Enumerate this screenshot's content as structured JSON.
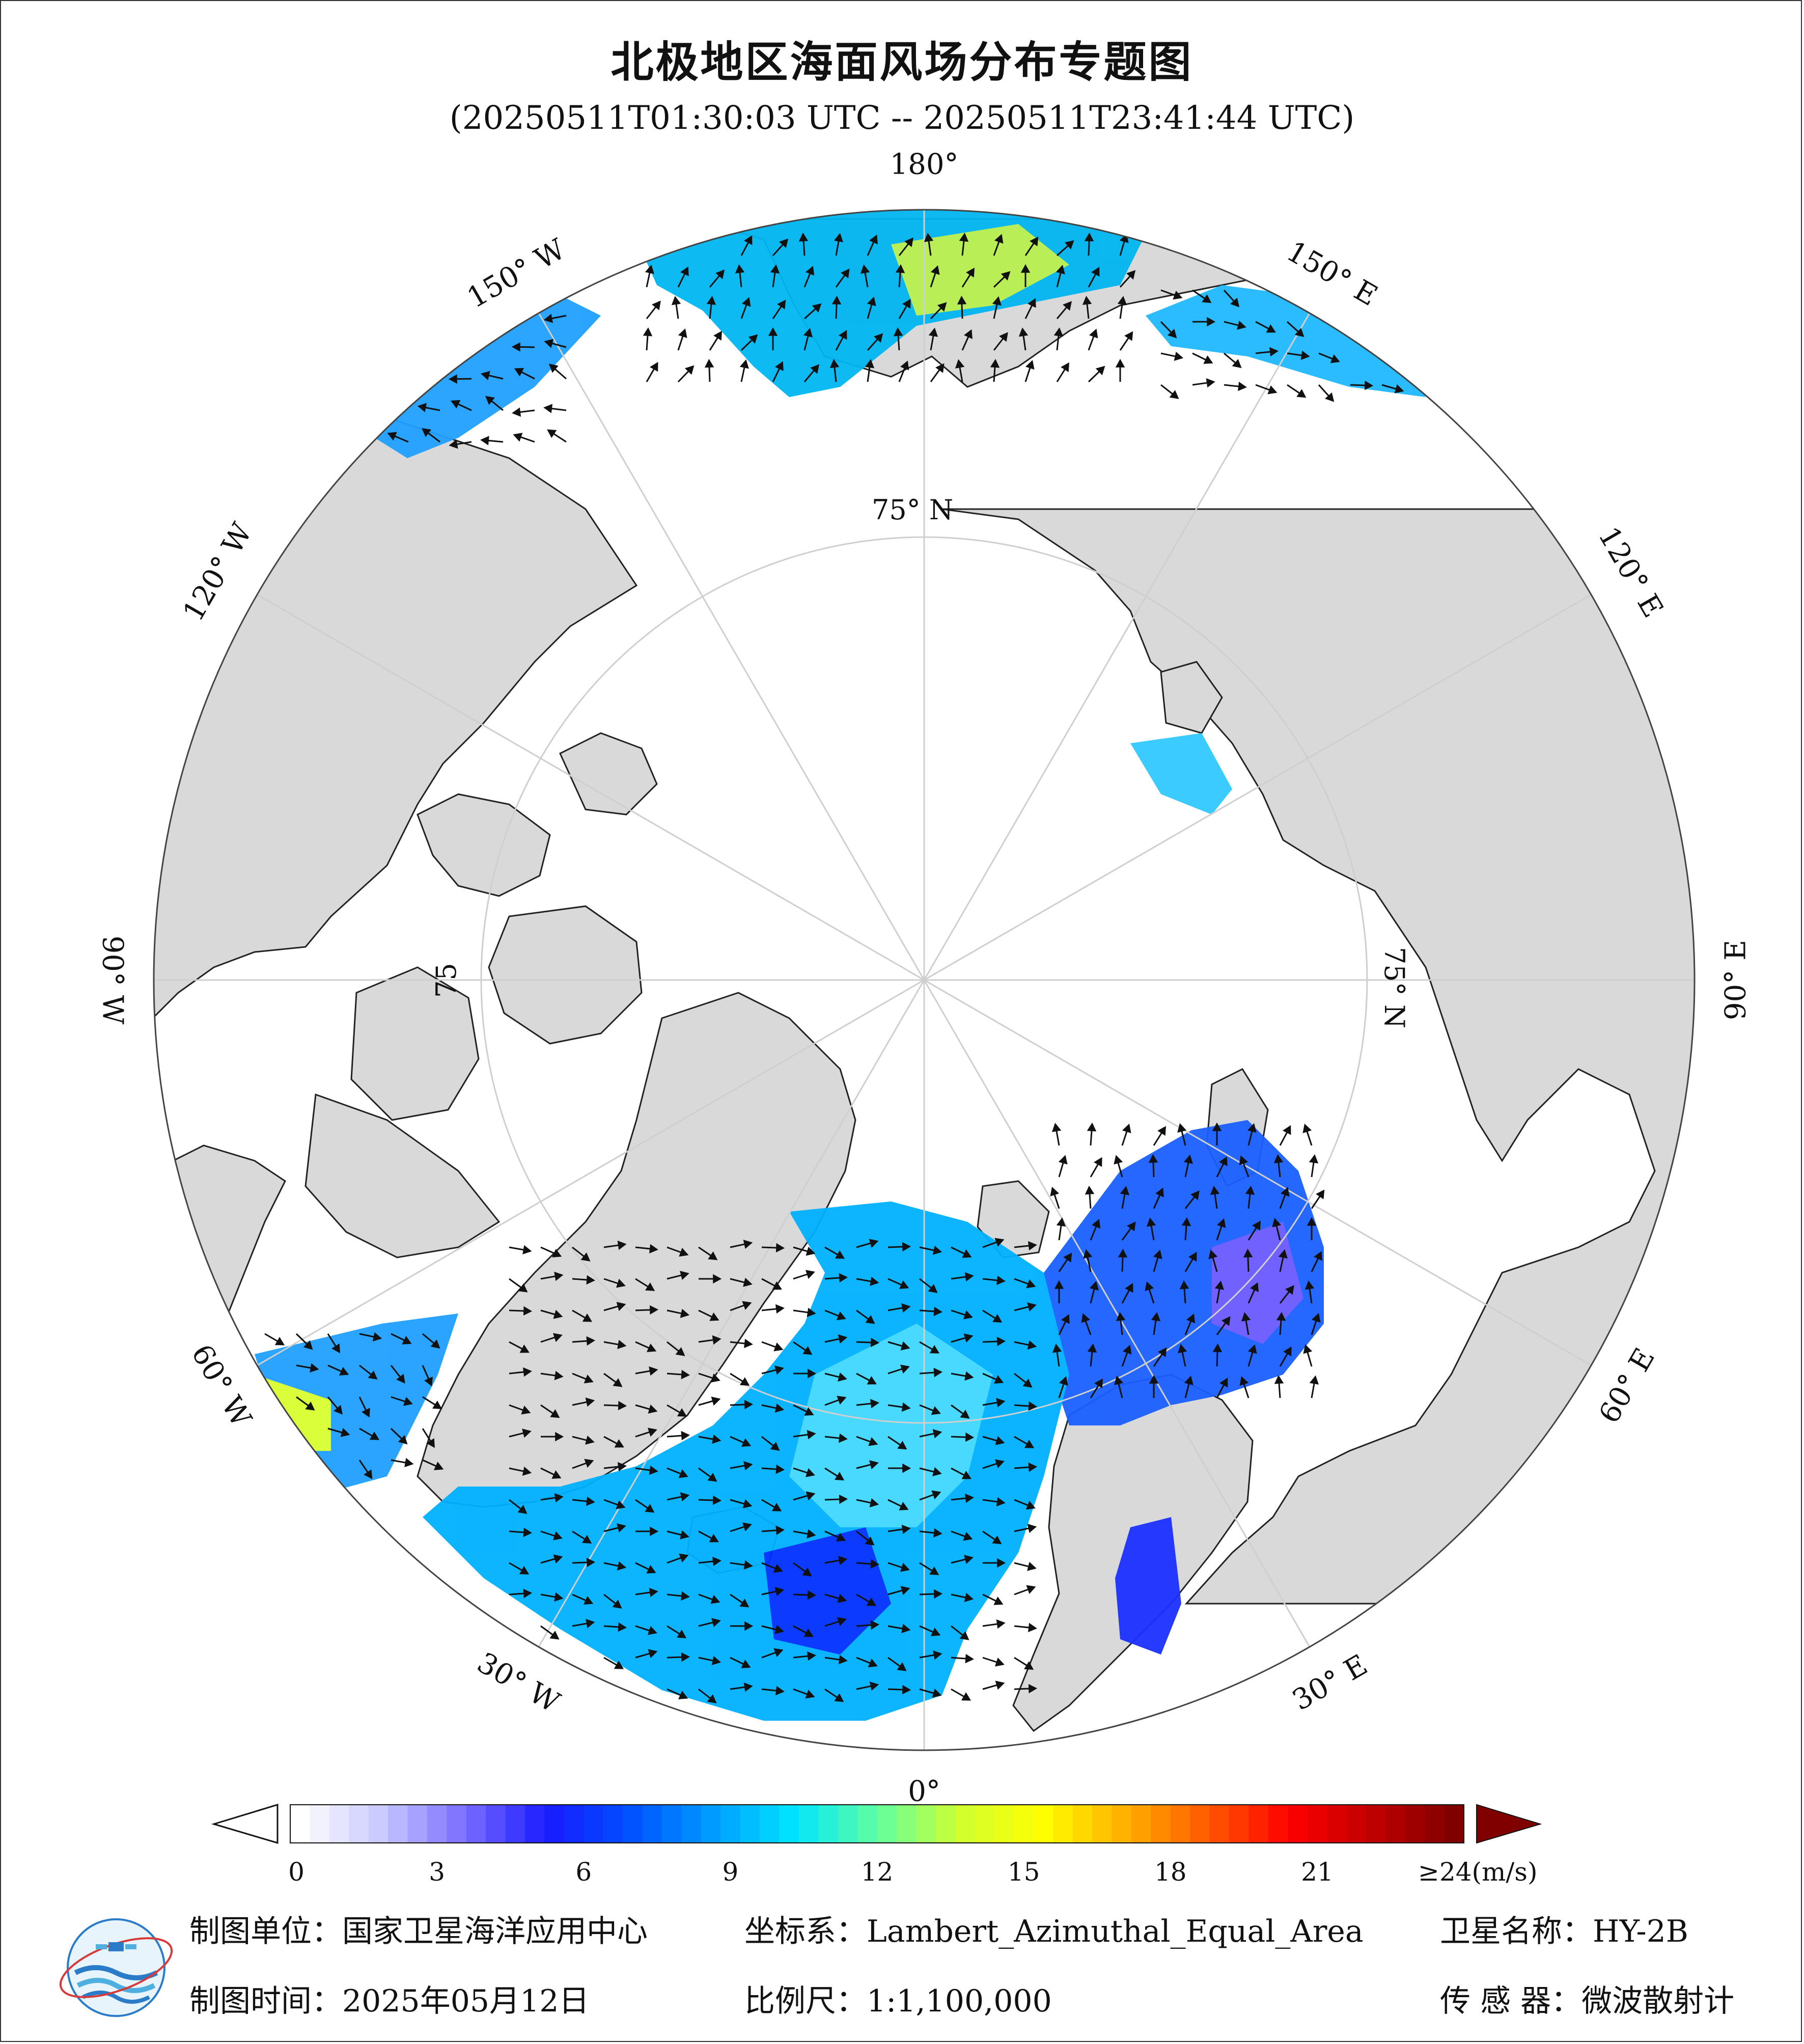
{
  "header": {
    "title": "北极地区海面风场分布专题图",
    "subtitle": "(20250511T01:30:03 UTC -- 20250511T23:41:44 UTC)"
  },
  "map": {
    "projection_center": "North Pole",
    "outer_latitude_extent": 45,
    "longitude_labels": [
      {
        "lon": 180,
        "text": "180°"
      },
      {
        "lon": -150,
        "text": "150° W"
      },
      {
        "lon": -120,
        "text": "120° W"
      },
      {
        "lon": -90,
        "text": "90° W"
      },
      {
        "lon": -60,
        "text": "60° W"
      },
      {
        "lon": -30,
        "text": "30° W"
      },
      {
        "lon": 0,
        "text": "0°"
      },
      {
        "lon": 30,
        "text": "30° E"
      },
      {
        "lon": 60,
        "text": "60° E"
      },
      {
        "lon": 90,
        "text": "90° E"
      },
      {
        "lon": 120,
        "text": "120° E"
      },
      {
        "lon": 150,
        "text": "150° E"
      }
    ],
    "latitude_labels": [
      {
        "lat": 75,
        "text": "75° N"
      },
      {
        "lat": 75,
        "text": "75"
      },
      {
        "lat": 75,
        "text": "75° N"
      }
    ],
    "colors": {
      "land": "#d9d9d9",
      "ice_ocean_nodata": "#ffffff",
      "graticule": "#cccccc",
      "coast": "#222222",
      "arrow": "#111111"
    }
  },
  "colorbar": {
    "unit": "(m/s)",
    "min": 0,
    "max": 24,
    "tick_labels": [
      "0",
      "3",
      "6",
      "9",
      "12",
      "15",
      "18",
      "21",
      "≥24(m/s)"
    ],
    "tick_values": [
      0,
      3,
      6,
      9,
      12,
      15,
      18,
      21,
      24
    ],
    "colors": [
      "#ffffff",
      "#c8c8ff",
      "#7a6cff",
      "#1a1aff",
      "#0050ff",
      "#009cff",
      "#00e6ff",
      "#60ffa0",
      "#d0ff30",
      "#ffff00",
      "#ffb000",
      "#ff5a00",
      "#ff0000",
      "#c00000",
      "#800000"
    ],
    "under_color": "#ffffff",
    "over_color": "#800000"
  },
  "footer": {
    "producer": "制图单位：国家卫星海洋应用中心",
    "date": "制图时间：2025年05月12日",
    "crs": "坐标系：Lambert_Azimuthal_Equal_Area",
    "scale": "比例尺：1:1,100,000",
    "satellite": "卫星名称：HY-2B",
    "sensor": "传 感 器：微波散射计"
  },
  "logo": {
    "icon": "nsoas-logo-icon",
    "colors": [
      "#2a7bc8",
      "#4fb0e0",
      "#d63a3a"
    ]
  }
}
